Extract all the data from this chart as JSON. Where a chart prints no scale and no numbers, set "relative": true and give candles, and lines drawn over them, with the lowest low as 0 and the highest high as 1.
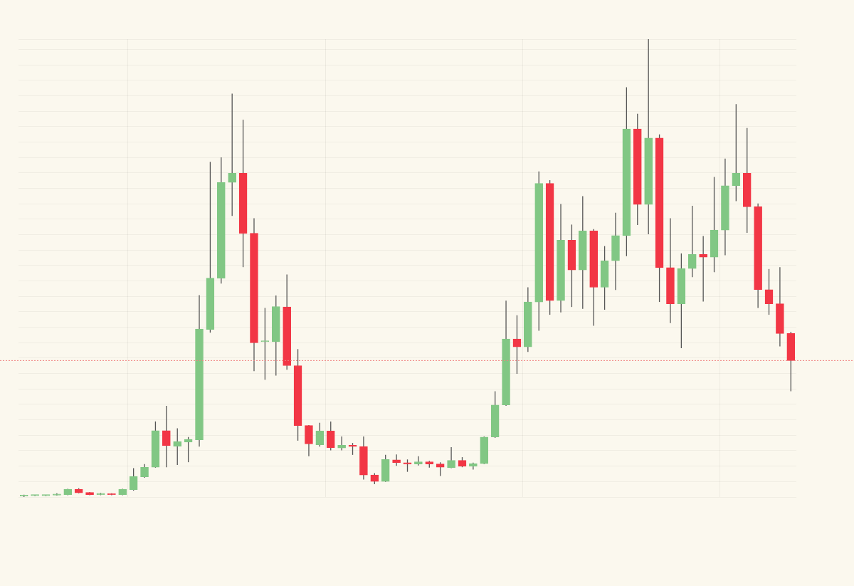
{
  "chart_data": {
    "type": "candlestick",
    "relative": true,
    "grid": true,
    "categories": [
      null,
      null,
      null,
      null,
      null,
      null,
      null,
      null,
      null,
      null,
      null,
      null,
      null,
      null,
      null,
      null,
      null,
      null,
      null,
      null,
      null,
      null,
      null,
      null,
      null,
      null,
      null,
      null,
      null,
      null,
      null,
      null,
      null,
      null,
      null,
      null,
      null,
      null,
      null,
      null,
      null,
      null,
      null,
      null,
      null,
      null,
      null,
      null,
      null,
      null,
      null,
      null,
      null,
      null,
      null,
      null,
      null,
      null,
      null,
      null,
      null,
      null,
      null,
      null,
      null,
      null,
      null,
      null,
      null,
      null,
      null
    ],
    "ohlc": [
      [
        0.002,
        0.005,
        0,
        0.003
      ],
      [
        0.003,
        0.004,
        0.002,
        0.003
      ],
      [
        0.003,
        0.004,
        0.002,
        0.003
      ],
      [
        0.004,
        0.008,
        0.003,
        0.005
      ],
      [
        0.005,
        0.018,
        0.004,
        0.017
      ],
      [
        0.017,
        0.019,
        0.008,
        0.009
      ],
      [
        0.01,
        0.011,
        0.004,
        0.005
      ],
      [
        0.005,
        0.009,
        0.004,
        0.008
      ],
      [
        0.007,
        0.008,
        0.004,
        0.005
      ],
      [
        0.005,
        0.018,
        0.004,
        0.017
      ],
      [
        0.016,
        0.063,
        0.014,
        0.045
      ],
      [
        0.044,
        0.072,
        0.042,
        0.065
      ],
      [
        0.065,
        0.165,
        0.064,
        0.145
      ],
      [
        0.145,
        0.199,
        0.065,
        0.112
      ],
      [
        0.111,
        0.15,
        0.07,
        0.121
      ],
      [
        0.12,
        0.131,
        0.076,
        0.126
      ],
      [
        0.125,
        0.441,
        0.11,
        0.367
      ],
      [
        0.366,
        0.732,
        0.359,
        0.478
      ],
      [
        0.478,
        0.742,
        0.466,
        0.687
      ],
      [
        0.687,
        0.881,
        0.614,
        0.707
      ],
      [
        0.707,
        0.824,
        0.502,
        0.576
      ],
      [
        0.576,
        0.609,
        0.275,
        0.337
      ],
      [
        0.339,
        0.413,
        0.256,
        0.339
      ],
      [
        0.339,
        0.44,
        0.265,
        0.416
      ],
      [
        0.415,
        0.486,
        0.278,
        0.287
      ],
      [
        0.287,
        0.323,
        0.123,
        0.156
      ],
      [
        0.156,
        0.157,
        0.089,
        0.116
      ],
      [
        0.114,
        0.162,
        0.11,
        0.144
      ],
      [
        0.144,
        0.165,
        0.102,
        0.108
      ],
      [
        0.107,
        0.132,
        0.102,
        0.113
      ],
      [
        0.113,
        0.118,
        0.092,
        0.11
      ],
      [
        0.11,
        0.132,
        0.038,
        0.048
      ],
      [
        0.048,
        0.052,
        0.028,
        0.034
      ],
      [
        0.034,
        0.092,
        0.033,
        0.082
      ],
      [
        0.081,
        0.093,
        0.068,
        0.075
      ],
      [
        0.075,
        0.082,
        0.055,
        0.072
      ],
      [
        0.072,
        0.089,
        0.069,
        0.077
      ],
      [
        0.077,
        0.079,
        0.064,
        0.072
      ],
      [
        0.072,
        0.076,
        0.046,
        0.065
      ],
      [
        0.064,
        0.109,
        0.063,
        0.08
      ],
      [
        0.08,
        0.087,
        0.065,
        0.067
      ],
      [
        0.067,
        0.075,
        0.06,
        0.073
      ],
      [
        0.073,
        0.132,
        0.072,
        0.131
      ],
      [
        0.131,
        0.231,
        0.129,
        0.201
      ],
      [
        0.201,
        0.429,
        0.199,
        0.345
      ],
      [
        0.345,
        0.397,
        0.269,
        0.328
      ],
      [
        0.328,
        0.458,
        0.317,
        0.426
      ],
      [
        0.426,
        0.711,
        0.363,
        0.685
      ],
      [
        0.685,
        0.692,
        0.398,
        0.429
      ],
      [
        0.429,
        0.64,
        0.403,
        0.561
      ],
      [
        0.561,
        0.595,
        0.415,
        0.496
      ],
      [
        0.496,
        0.657,
        0.411,
        0.581
      ],
      [
        0.581,
        0.585,
        0.374,
        0.458
      ],
      [
        0.458,
        0.548,
        0.409,
        0.516
      ],
      [
        0.516,
        0.621,
        0.452,
        0.571
      ],
      [
        0.571,
        0.895,
        0.526,
        0.804
      ],
      [
        0.804,
        0.837,
        0.594,
        0.639
      ],
      [
        0.639,
        1,
        0.574,
        0.784
      ],
      [
        0.784,
        0.792,
        0.426,
        0.501
      ],
      [
        0.501,
        0.609,
        0.38,
        0.422
      ],
      [
        0.422,
        0.532,
        0.325,
        0.499
      ],
      [
        0.499,
        0.636,
        0.48,
        0.53
      ],
      [
        0.53,
        0.57,
        0.427,
        0.524
      ],
      [
        0.524,
        0.699,
        0.491,
        0.583
      ],
      [
        0.583,
        0.739,
        0.528,
        0.68
      ],
      [
        0.68,
        0.858,
        0.646,
        0.707
      ],
      [
        0.707,
        0.806,
        0.577,
        0.634
      ],
      [
        0.634,
        0.641,
        0.413,
        0.453
      ],
      [
        0.453,
        0.498,
        0.398,
        0.422
      ],
      [
        0.422,
        0.502,
        0.329,
        0.357
      ],
      [
        0.357,
        0.361,
        0.231,
        0.298
      ]
    ],
    "colors": [
      "#81c784",
      "#81c784",
      "#81c784",
      "#81c784",
      "#81c784",
      "#f23645",
      "#f23645",
      "#81c784",
      "#f23645",
      "#81c784",
      "#81c784",
      "#81c784",
      "#81c784",
      "#f23645",
      "#81c784",
      "#81c784",
      "#81c784",
      "#81c784",
      "#81c784",
      "#81c784",
      "#f23645",
      "#f23645",
      "#81c784",
      "#81c784",
      "#f23645",
      "#f23645",
      "#f23645",
      "#81c784",
      "#f23645",
      "#81c784",
      "#f23645",
      "#f23645",
      "#f23645",
      "#81c784",
      "#f23645",
      "#f23645",
      "#81c784",
      "#f23645",
      "#f23645",
      "#81c784",
      "#f23645",
      "#81c784",
      "#81c784",
      "#81c784",
      "#81c784",
      "#f23645",
      "#81c784",
      "#81c784",
      "#f23645",
      "#81c784",
      "#f23645",
      "#81c784",
      "#f23645",
      "#81c784",
      "#81c784",
      "#81c784",
      "#f23645",
      "#81c784",
      "#f23645",
      "#f23645",
      "#81c784",
      "#81c784",
      "#f23645",
      "#81c784",
      "#81c784",
      "#81c784",
      "#f23645",
      "#f23645",
      "#f23645",
      "#f23645",
      "#f23645"
    ],
    "ref_lines": [
      {
        "axis": "y",
        "value": 0.298,
        "color": "#f08080",
        "line_style": "dotted"
      }
    ]
  }
}
